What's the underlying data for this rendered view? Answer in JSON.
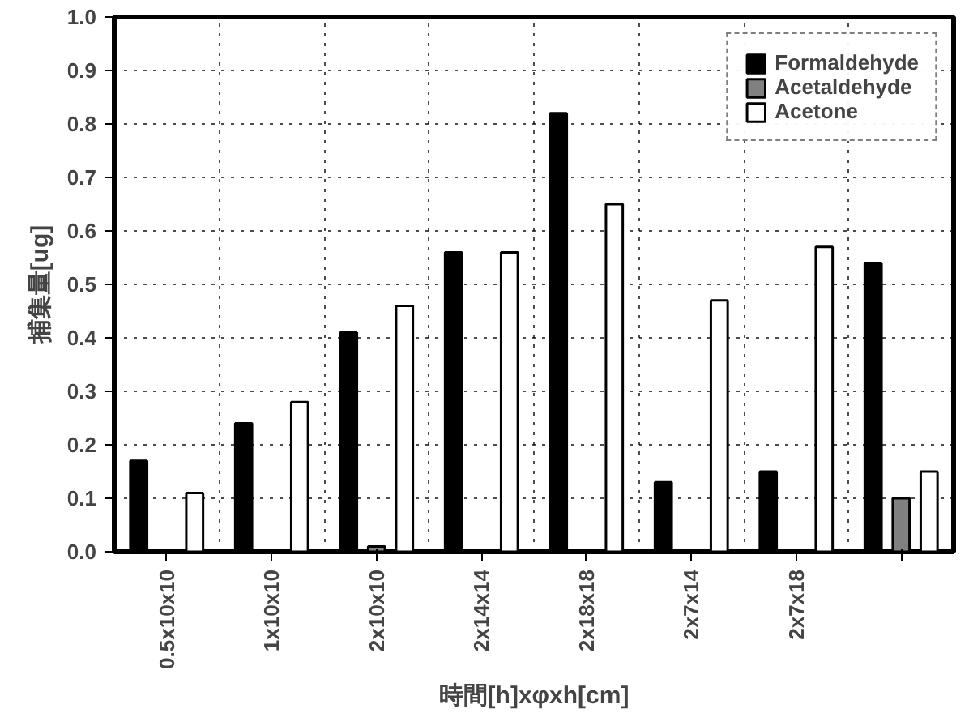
{
  "chart_data": {
    "type": "bar",
    "xlabel": "時間[h]xφxh[cm]",
    "ylabel": "捕集量[ug]",
    "categories": [
      "0.5x10x10",
      "1x10x10",
      "2x10x10",
      "2x14x14",
      "2x18x18",
      "2x7x14",
      "2x7x18",
      null
    ],
    "series": [
      {
        "name": "Formaldehyde",
        "color": "#000000",
        "values": [
          0.17,
          0.24,
          0.41,
          0.56,
          0.82,
          0.13,
          0.15,
          0.54
        ]
      },
      {
        "name": "Acetaldehyde",
        "color": "#808080",
        "values": [
          null,
          null,
          0.01,
          null,
          null,
          null,
          null,
          0.1
        ]
      },
      {
        "name": "Acetone",
        "color": "#ffffff",
        "values": [
          0.11,
          0.28,
          0.46,
          0.56,
          0.65,
          0.47,
          0.57,
          0.15
        ]
      }
    ],
    "ylim": [
      0,
      1.0
    ],
    "yticks": [
      {
        "value": 0,
        "label": "0.0"
      },
      0.1,
      0.2,
      0.3,
      0.4,
      0.5,
      0.6,
      0.7,
      0.8,
      0.9,
      {
        "value": 1,
        "label": "1.0"
      }
    ],
    "grid": true,
    "legend": "top right",
    "line_style": "dotted"
  }
}
